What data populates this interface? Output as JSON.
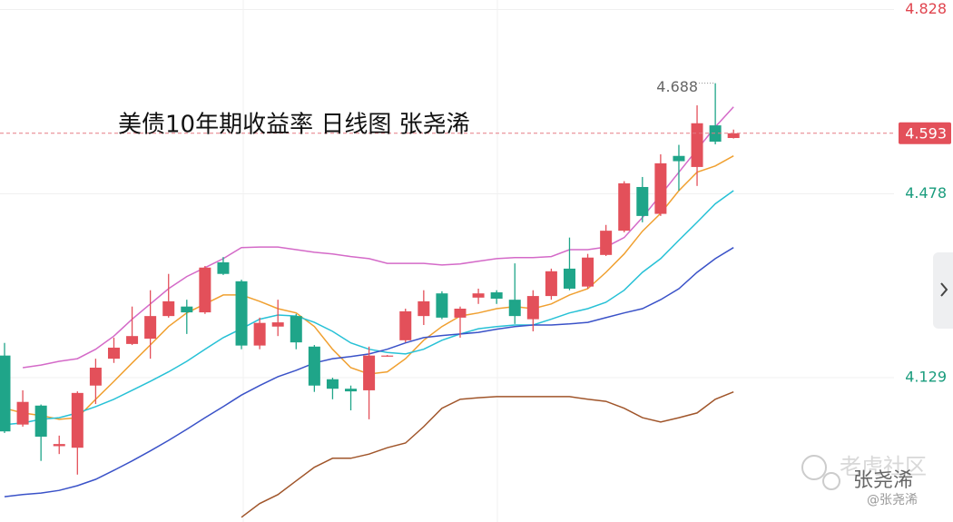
{
  "chart_data": {
    "type": "candlestick",
    "title": "美债10年期收益率 日线图  张尧浠",
    "categories": [
      null,
      null,
      null,
      null,
      null,
      null,
      null,
      null,
      null,
      null,
      null,
      null,
      null,
      null,
      null,
      null,
      null,
      null,
      null,
      null,
      null,
      null,
      null,
      null,
      null,
      null,
      null,
      null,
      null,
      null,
      null,
      null,
      null,
      null,
      null,
      null,
      null,
      null,
      null,
      null,
      null
    ],
    "open": [
      4.171,
      4.04,
      4.076,
      3.999,
      3.996,
      4.114,
      4.165,
      4.193,
      4.203,
      4.246,
      4.264,
      4.253,
      4.348,
      4.312,
      4.19,
      4.226,
      4.246,
      4.188,
      4.126,
      4.108,
      4.105,
      4.17,
      4.2,
      4.246,
      4.289,
      4.243,
      4.281,
      4.291,
      4.277,
      4.24,
      4.284,
      4.336,
      4.302,
      4.362,
      4.408,
      4.491,
      4.44,
      4.55,
      4.529,
      4.608,
      4.584
    ],
    "high": [
      4.195,
      4.105,
      4.078,
      4.019,
      4.103,
      4.165,
      4.205,
      4.264,
      4.295,
      4.326,
      4.277,
      4.341,
      4.358,
      4.315,
      4.243,
      4.277,
      4.25,
      4.191,
      4.129,
      4.114,
      4.188,
      4.172,
      4.26,
      4.295,
      4.293,
      4.264,
      4.298,
      4.295,
      4.346,
      4.295,
      4.336,
      4.395,
      4.364,
      4.419,
      4.502,
      4.51,
      4.553,
      4.571,
      4.646,
      4.688,
      4.6
    ],
    "low": [
      4.024,
      4.036,
      3.971,
      3.984,
      3.945,
      4.079,
      4.157,
      4.191,
      4.165,
      4.243,
      4.212,
      4.25,
      4.324,
      4.183,
      4.183,
      4.208,
      4.183,
      4.102,
      4.088,
      4.067,
      4.05,
      4.169,
      4.196,
      4.229,
      4.24,
      4.205,
      4.269,
      4.269,
      4.231,
      4.217,
      4.277,
      4.295,
      4.298,
      4.36,
      4.405,
      4.424,
      4.436,
      4.484,
      4.493,
      4.572,
      4.583
    ],
    "close": [
      4.027,
      4.083,
      4.017,
      4.003,
      4.1,
      4.148,
      4.186,
      4.208,
      4.246,
      4.274,
      4.253,
      4.338,
      4.326,
      4.19,
      4.233,
      4.234,
      4.196,
      4.114,
      4.108,
      4.103,
      4.171,
      4.171,
      4.255,
      4.274,
      4.243,
      4.26,
      4.289,
      4.279,
      4.246,
      4.284,
      4.331,
      4.298,
      4.357,
      4.408,
      4.498,
      4.436,
      4.536,
      4.54,
      4.612,
      4.577,
      4.593
    ],
    "up_color": "#e3505a",
    "down_color": "#1fa589",
    "lines": [
      {
        "color": "#f0a030",
        "values": [
          4.071,
          4.062,
          4.057,
          4.05,
          4.053,
          4.088,
          4.122,
          4.157,
          4.191,
          4.226,
          4.252,
          4.269,
          4.286,
          4.286,
          4.274,
          4.26,
          4.252,
          4.226,
          4.183,
          4.148,
          4.136,
          4.14,
          4.165,
          4.2,
          4.226,
          4.246,
          4.252,
          4.26,
          4.264,
          4.26,
          4.269,
          4.286,
          4.298,
          4.329,
          4.364,
          4.407,
          4.441,
          4.484,
          4.519,
          4.531,
          4.55
        ]
      },
      {
        "color": "#27c1d6",
        "values": [
          4.04,
          4.043,
          4.05,
          4.053,
          4.062,
          4.074,
          4.088,
          4.105,
          4.122,
          4.14,
          4.16,
          4.183,
          4.205,
          4.222,
          4.24,
          4.248,
          4.246,
          4.234,
          4.217,
          4.195,
          4.183,
          4.177,
          4.174,
          4.183,
          4.2,
          4.212,
          4.222,
          4.226,
          4.229,
          4.229,
          4.24,
          4.252,
          4.26,
          4.272,
          4.295,
          4.329,
          4.355,
          4.39,
          4.424,
          4.459,
          4.484
        ]
      },
      {
        "color": "#3a52c8",
        "values": [
          3.903,
          3.907,
          3.91,
          3.915,
          3.924,
          3.936,
          3.953,
          3.971,
          3.99,
          4.01,
          4.031,
          4.053,
          4.074,
          4.096,
          4.114,
          4.131,
          4.143,
          4.157,
          4.165,
          4.169,
          4.174,
          4.183,
          4.195,
          4.205,
          4.209,
          4.212,
          4.215,
          4.221,
          4.226,
          4.229,
          4.229,
          4.231,
          4.234,
          4.243,
          4.252,
          4.26,
          4.277,
          4.298,
          4.329,
          4.355,
          4.376
        ]
      },
      {
        "color": "#d46ac8",
        "values": [
          null,
          4.148,
          4.153,
          4.16,
          4.165,
          4.183,
          4.208,
          4.24,
          4.269,
          4.298,
          4.321,
          4.338,
          4.355,
          4.376,
          4.377,
          4.377,
          4.372,
          4.367,
          4.364,
          4.359,
          4.355,
          4.346,
          4.346,
          4.346,
          4.343,
          4.345,
          4.35,
          4.355,
          4.357,
          4.357,
          4.359,
          4.372,
          4.372,
          4.377,
          4.395,
          4.433,
          4.476,
          4.519,
          4.562,
          4.605,
          4.643
        ]
      },
      {
        "color": "#a0552a",
        "values": [
          null,
          null,
          null,
          null,
          null,
          null,
          null,
          null,
          null,
          null,
          null,
          null,
          null,
          3.864,
          3.89,
          3.907,
          3.933,
          3.959,
          3.976,
          3.976,
          3.984,
          3.996,
          4.005,
          4.036,
          4.071,
          4.088,
          4.091,
          4.093,
          4.093,
          4.093,
          4.093,
          4.093,
          4.088,
          4.084,
          4.071,
          4.053,
          4.045,
          4.053,
          4.062,
          4.088,
          4.102
        ]
      }
    ],
    "ylim": [
      3.855,
      4.846
    ],
    "yticks": [
      4.828,
      4.478,
      4.129
    ],
    "ytick_colors": [
      "#e0454f",
      "#1a9c7d",
      "#1a9c7d"
    ],
    "grid": true,
    "last_price": 4.593,
    "high_label": 4.688
  },
  "watermark": {
    "brand": "老虎社区",
    "author": "张尧浠",
    "handle": "@张尧浠"
  }
}
